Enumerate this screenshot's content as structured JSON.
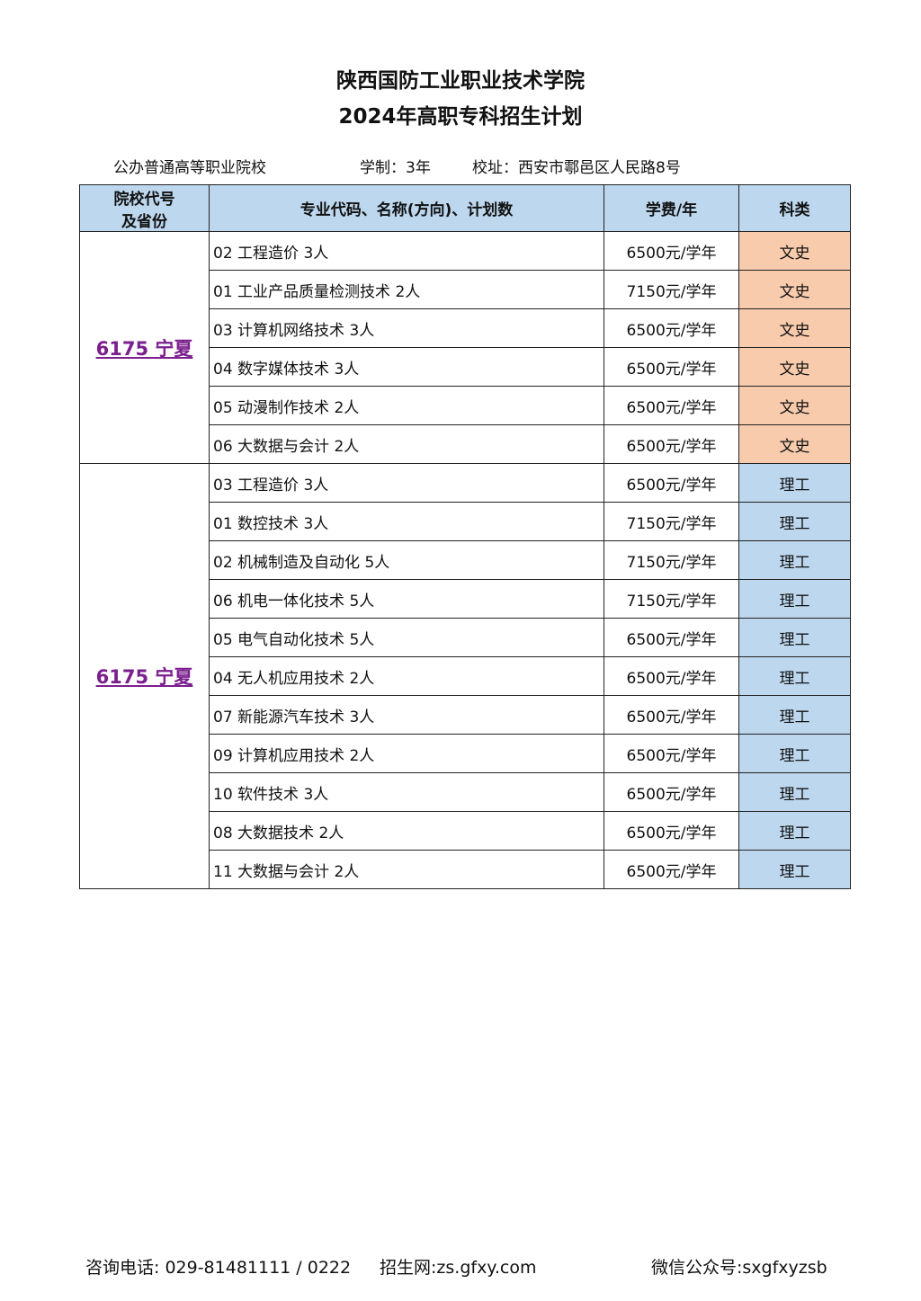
{
  "title_line1": "陕西国防工业职业技术学院",
  "title_line2": "2024年高职专科招生计划",
  "info": {
    "type": "公办普通高等职业院校",
    "duration": "学制：3年",
    "address": "校址：西安市鄠邑区人民路8号"
  },
  "headers": {
    "code": "院校代号\n及省份",
    "code_l1": "院校代号",
    "code_l2": "及省份",
    "major": "专业代码、名称(方向)、计划数",
    "fee": "学费/年",
    "category": "科类"
  },
  "colors": {
    "header": "#BDD7EE",
    "wenshi": "#F8CBAD",
    "ligong": "#BDD7EE",
    "link": "#7B1F8E"
  },
  "groups": [
    {
      "code": "6175 宁夏",
      "rows": [
        {
          "major": "02 工程造价 3人",
          "fee": "6500元/学年",
          "category": "文史"
        },
        {
          "major": "01 工业产品质量检测技术 2人",
          "fee": "7150元/学年",
          "category": "文史"
        },
        {
          "major": "03 计算机网络技术 3人",
          "fee": "6500元/学年",
          "category": "文史"
        },
        {
          "major": "04 数字媒体技术 3人",
          "fee": "6500元/学年",
          "category": "文史"
        },
        {
          "major": "05 动漫制作技术 2人",
          "fee": "6500元/学年",
          "category": "文史"
        },
        {
          "major": "06 大数据与会计 2人",
          "fee": "6500元/学年",
          "category": "文史"
        }
      ]
    },
    {
      "code": "6175 宁夏",
      "rows": [
        {
          "major": "03 工程造价 3人",
          "fee": "6500元/学年",
          "category": "理工"
        },
        {
          "major": "01 数控技术 3人",
          "fee": "7150元/学年",
          "category": "理工"
        },
        {
          "major": "02 机械制造及自动化 5人",
          "fee": "7150元/学年",
          "category": "理工"
        },
        {
          "major": "06 机电一体化技术 5人",
          "fee": "7150元/学年",
          "category": "理工"
        },
        {
          "major": "05 电气自动化技术 5人",
          "fee": "6500元/学年",
          "category": "理工"
        },
        {
          "major": "04 无人机应用技术 2人",
          "fee": "6500元/学年",
          "category": "理工"
        },
        {
          "major": "07 新能源汽车技术 3人",
          "fee": "6500元/学年",
          "category": "理工"
        },
        {
          "major": "09 计算机应用技术 2人",
          "fee": "6500元/学年",
          "category": "理工"
        },
        {
          "major": "10 软件技术 3人",
          "fee": "6500元/学年",
          "category": "理工"
        },
        {
          "major": "08 大数据技术 2人",
          "fee": "6500元/学年",
          "category": "理工"
        },
        {
          "major": "11 大数据与会计 2人",
          "fee": "6500元/学年",
          "category": "理工"
        }
      ]
    }
  ],
  "footer": {
    "phone": "咨询电话: 029-81481111 / 0222",
    "website": "招生网:zs.gfxy.com",
    "wechat": "微信公众号:sxgfxyzsb"
  }
}
